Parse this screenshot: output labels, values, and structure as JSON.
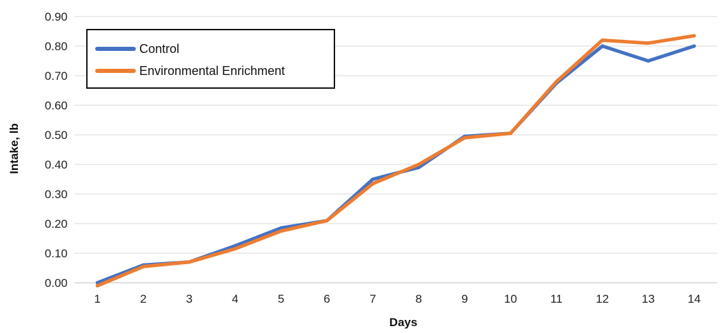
{
  "chart_data": {
    "type": "line",
    "xlabel": "Days",
    "ylabel": "Intake, lb",
    "x": [
      "1",
      "2",
      "3",
      "4",
      "5",
      "6",
      "7",
      "8",
      "9",
      "10",
      "11",
      "12",
      "13",
      "14"
    ],
    "ylim": [
      0,
      0.9
    ],
    "y_ticks": [
      "0.00",
      "0.10",
      "0.20",
      "0.30",
      "0.40",
      "0.50",
      "0.60",
      "0.70",
      "0.80",
      "0.90"
    ],
    "grid": true,
    "legend_position": "top-left",
    "series": [
      {
        "name": "Control",
        "color": "#4472C4",
        "values": [
          0.0,
          0.06,
          0.07,
          0.125,
          0.185,
          0.21,
          0.35,
          0.39,
          0.495,
          0.505,
          0.675,
          0.8,
          0.75,
          0.8
        ]
      },
      {
        "name": "Environmental Enrichment",
        "color": "#ED7D31",
        "values": [
          -0.01,
          0.055,
          0.07,
          0.115,
          0.175,
          0.21,
          0.335,
          0.4,
          0.49,
          0.505,
          0.68,
          0.82,
          0.81,
          0.835
        ]
      }
    ]
  }
}
